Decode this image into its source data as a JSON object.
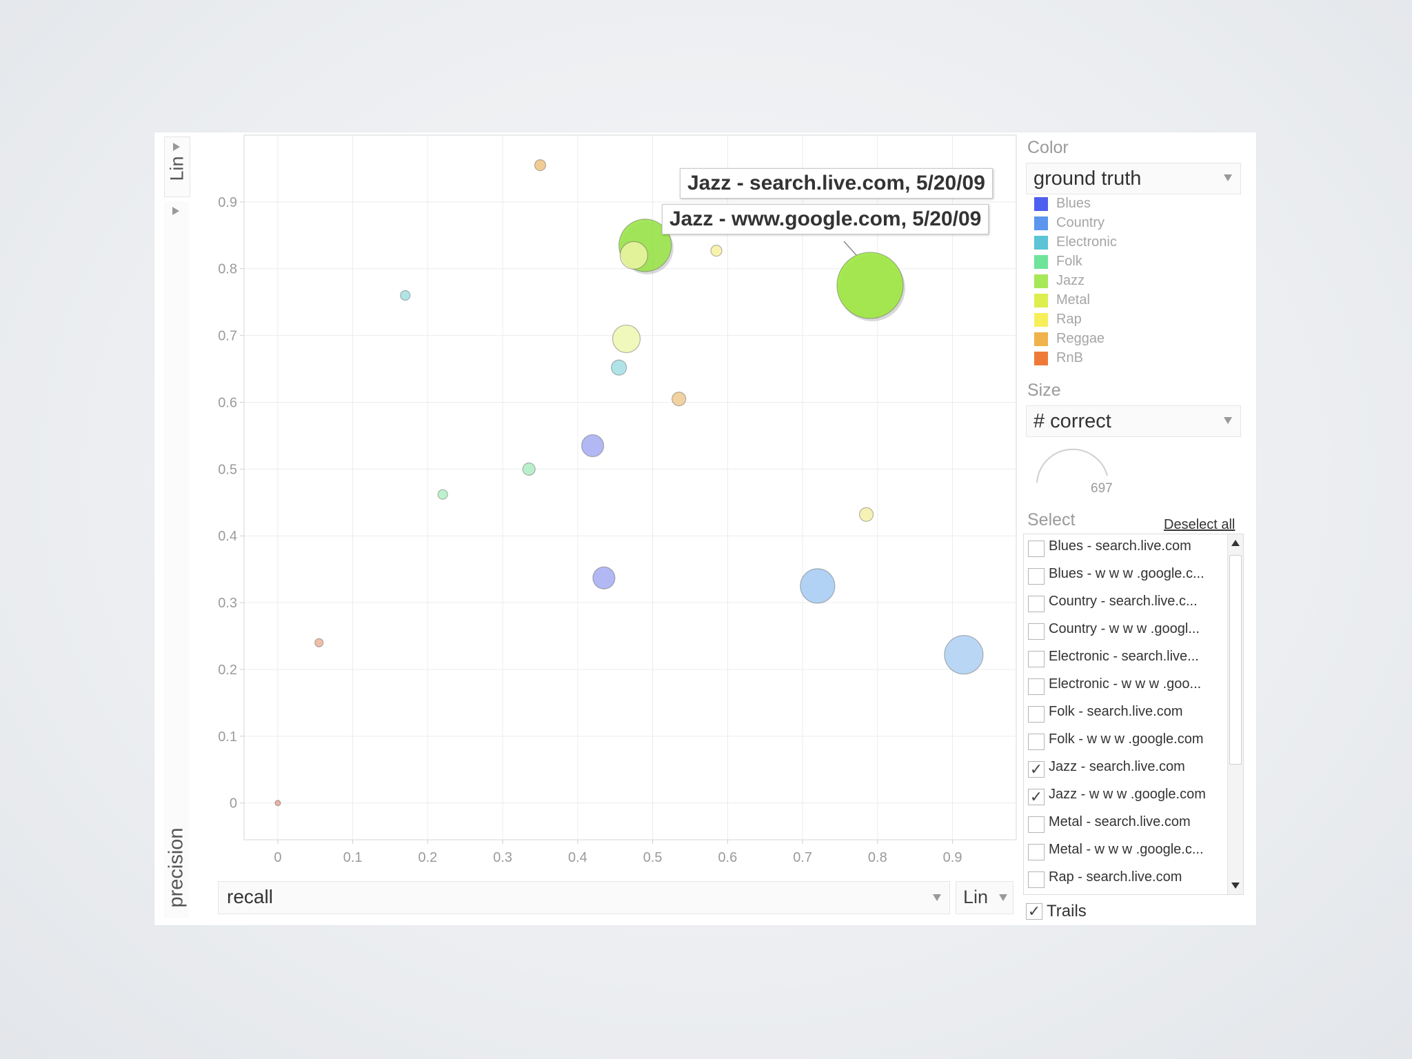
{
  "y_axis": {
    "scale": "Lin",
    "title": "precision"
  },
  "x_axis": {
    "select_value": "recall",
    "scale": "Lin"
  },
  "tooltips": [
    "Jazz - search.live.com, 5/20/09",
    "Jazz - www.google.com, 5/20/09"
  ],
  "color_panel": {
    "label": "Color",
    "dropdown_value": "ground truth",
    "legend": [
      {
        "label": "Blues",
        "color": "#4d5ff0"
      },
      {
        "label": "Country",
        "color": "#5b95ee"
      },
      {
        "label": "Electronic",
        "color": "#5cc4d4"
      },
      {
        "label": "Folk",
        "color": "#6ee49a"
      },
      {
        "label": "Jazz",
        "color": "#a6e858"
      },
      {
        "label": "Metal",
        "color": "#dcef4e"
      },
      {
        "label": "Rap",
        "color": "#f7ef5a"
      },
      {
        "label": "Reggae",
        "color": "#f0b24a"
      },
      {
        "label": "RnB",
        "color": "#ee7a3a"
      }
    ]
  },
  "size_panel": {
    "label": "Size",
    "dropdown_value": "# correct",
    "max_value": "697"
  },
  "select_panel": {
    "label": "Select",
    "deselect_label": "Deselect all",
    "items": [
      {
        "label": "Blues - search.live.com",
        "checked": false
      },
      {
        "label": "Blues - w w w .google.c...",
        "checked": false
      },
      {
        "label": "Country - search.live.c...",
        "checked": false
      },
      {
        "label": "Country - w w w .googl...",
        "checked": false
      },
      {
        "label": "Electronic - search.live...",
        "checked": false
      },
      {
        "label": "Electronic - w w w .goo...",
        "checked": false
      },
      {
        "label": "Folk - search.live.com",
        "checked": false
      },
      {
        "label": "Folk - w w w .google.com",
        "checked": false
      },
      {
        "label": "Jazz - search.live.com",
        "checked": true
      },
      {
        "label": "Jazz - w w w .google.com",
        "checked": true
      },
      {
        "label": "Metal - search.live.com",
        "checked": false
      },
      {
        "label": "Metal - w w w .google.c...",
        "checked": false
      },
      {
        "label": "Rap - search.live.com",
        "checked": false
      }
    ],
    "trails_label": "Trails",
    "trails_checked": true
  },
  "chart_data": {
    "type": "scatter",
    "xlabel": "recall",
    "ylabel": "precision",
    "xlim": [
      -0.045,
      0.985
    ],
    "ylim": [
      -0.055,
      1.0
    ],
    "xticks": [
      0,
      0.1,
      0.2,
      0.3,
      0.4,
      0.5,
      0.6,
      0.7,
      0.8,
      0.9
    ],
    "yticks": [
      0,
      0.1,
      0.2,
      0.3,
      0.4,
      0.5,
      0.6,
      0.7,
      0.8,
      0.9
    ],
    "grid": true,
    "points": [
      {
        "x": 0.35,
        "y": 0.955,
        "size": 8,
        "genre": "Reggae",
        "color": "#f0c88a"
      },
      {
        "x": 0.17,
        "y": 0.76,
        "size": 7,
        "genre": "Electronic",
        "color": "#a9e1e4"
      },
      {
        "x": 0.49,
        "y": 0.835,
        "size": 38,
        "genre": "Jazz",
        "color": "#9ae34a"
      },
      {
        "x": 0.475,
        "y": 0.82,
        "size": 20,
        "genre": "Metal",
        "color": "#e8f3a0"
      },
      {
        "x": 0.585,
        "y": 0.827,
        "size": 8,
        "genre": "Rap",
        "color": "#f6f1a5"
      },
      {
        "x": 0.79,
        "y": 0.775,
        "size": 48,
        "genre": "Jazz",
        "color": "#9de740"
      },
      {
        "x": 0.465,
        "y": 0.695,
        "size": 20,
        "genre": "Metal",
        "color": "#eef7b4"
      },
      {
        "x": 0.455,
        "y": 0.652,
        "size": 11,
        "genre": "Electronic",
        "color": "#a7e0e4"
      },
      {
        "x": 0.535,
        "y": 0.605,
        "size": 10,
        "genre": "Reggae",
        "color": "#f0cd96"
      },
      {
        "x": 0.42,
        "y": 0.535,
        "size": 16,
        "genre": "Blues",
        "color": "#a9b0f2"
      },
      {
        "x": 0.335,
        "y": 0.5,
        "size": 9,
        "genre": "Folk",
        "color": "#b1eec6"
      },
      {
        "x": 0.22,
        "y": 0.462,
        "size": 7,
        "genre": "Folk",
        "color": "#b4efc9"
      },
      {
        "x": 0.785,
        "y": 0.432,
        "size": 10,
        "genre": "Rap",
        "color": "#f5f1ad"
      },
      {
        "x": 0.435,
        "y": 0.337,
        "size": 16,
        "genre": "Blues",
        "color": "#a9b0f2"
      },
      {
        "x": 0.72,
        "y": 0.325,
        "size": 25,
        "genre": "Country",
        "color": "#aacdf4"
      },
      {
        "x": 0.915,
        "y": 0.222,
        "size": 28,
        "genre": "Country",
        "color": "#b1d1f4"
      },
      {
        "x": 0.055,
        "y": 0.24,
        "size": 6,
        "genre": "RnB",
        "color": "#f0b7a1"
      },
      {
        "x": 0.0,
        "y": 0.0,
        "size": 4,
        "genre": "RnB",
        "color": "#e8a89a"
      }
    ]
  }
}
